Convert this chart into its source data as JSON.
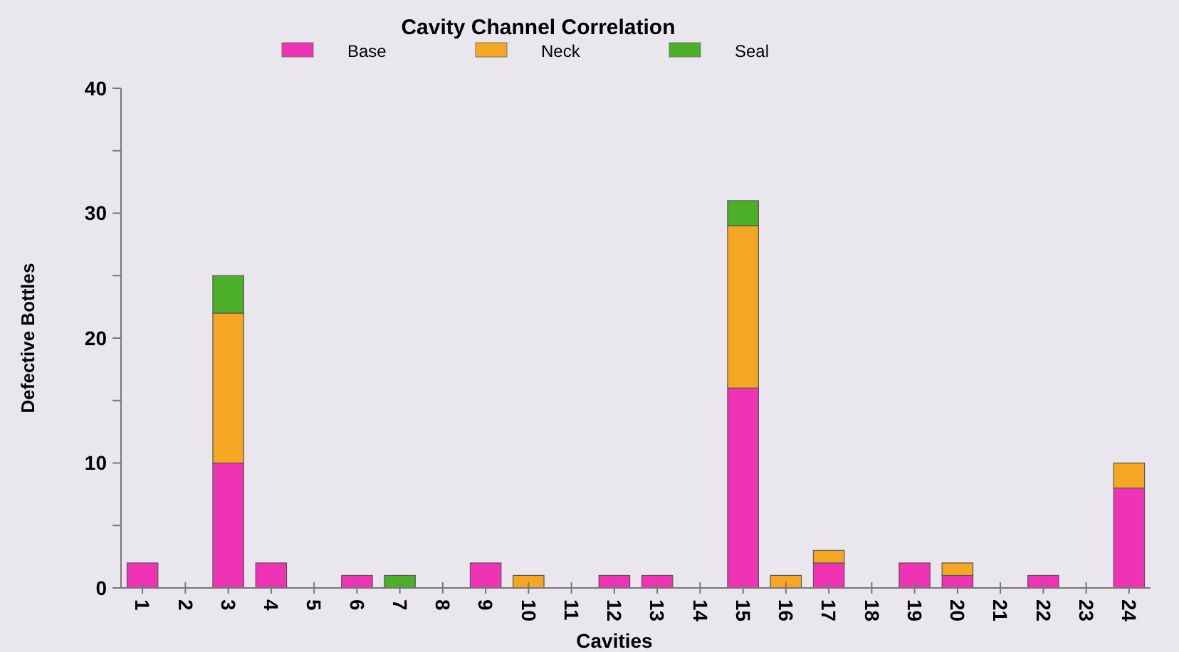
{
  "chart_data": {
    "type": "bar",
    "title": "Cavity Channel Correlation",
    "xlabel": "Cavities",
    "ylabel": "Defective Bottles",
    "stacked": true,
    "legend": "top",
    "grid": false,
    "categories": [
      "1",
      "2",
      "3",
      "4",
      "5",
      "6",
      "7",
      "8",
      "9",
      "10",
      "11",
      "12",
      "13",
      "14",
      "15",
      "16",
      "17",
      "18",
      "19",
      "20",
      "21",
      "22",
      "23",
      "24"
    ],
    "series": [
      {
        "name": "Base",
        "color": "#f032b4",
        "values": [
          2,
          0,
          10,
          2,
          0,
          1,
          0,
          0,
          2,
          0,
          0,
          1,
          1,
          0,
          16,
          0,
          2,
          0,
          2,
          1,
          0,
          1,
          0,
          8
        ]
      },
      {
        "name": "Neck",
        "color": "#f5a623",
        "values": [
          0,
          0,
          12,
          0,
          0,
          0,
          0,
          0,
          0,
          1,
          0,
          0,
          0,
          0,
          13,
          1,
          1,
          0,
          0,
          1,
          0,
          0,
          0,
          2
        ]
      },
      {
        "name": "Seal",
        "color": "#4caf28",
        "values": [
          0,
          0,
          3,
          0,
          0,
          0,
          1,
          0,
          0,
          0,
          0,
          0,
          0,
          0,
          2,
          0,
          0,
          0,
          0,
          0,
          0,
          0,
          0,
          0
        ]
      }
    ],
    "ylim": [
      0,
      40
    ],
    "yticks": [
      0,
      {
        "value": 5,
        "label": null
      },
      10,
      {
        "value": 15,
        "label": null
      },
      20,
      {
        "value": 25,
        "label": null
      },
      30,
      {
        "value": 35,
        "label": null
      },
      40
    ]
  }
}
